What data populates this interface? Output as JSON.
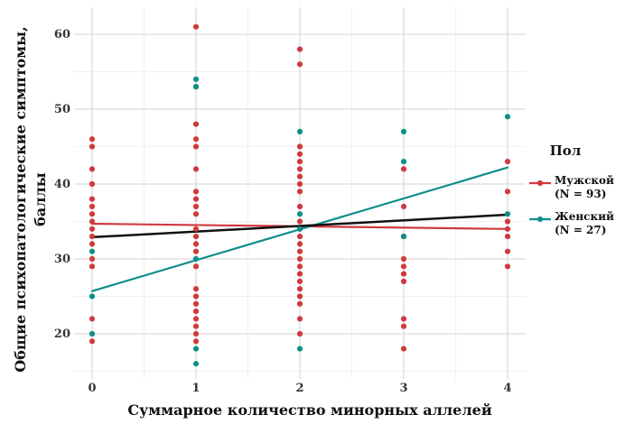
{
  "chart_data": {
    "type": "scatter",
    "xlabel": "Суммарное количество минорных аллелей",
    "ylabel_line1": "Общие психопатологические симптомы,",
    "ylabel_line2": "баллы",
    "x_ticks": [
      "0",
      "1",
      "2",
      "3",
      "4"
    ],
    "y_ticks": [
      "20",
      "30",
      "40",
      "50",
      "60"
    ],
    "xlim": [
      -0.1,
      4.1
    ],
    "ylim": [
      15,
      62
    ],
    "grid": true,
    "legend": {
      "title": "Пол",
      "position": "right",
      "entries": [
        {
          "line1": "Мужской",
          "line2": "(N = 93)",
          "color": "#d0393d"
        },
        {
          "line1": "Женский",
          "line2": "(N = 27)",
          "color": "#0e8f8c"
        }
      ]
    },
    "series": [
      {
        "name": "Мужской",
        "color": "#d0393d",
        "points": [
          [
            0,
            19
          ],
          [
            0,
            22
          ],
          [
            0,
            29
          ],
          [
            0,
            30
          ],
          [
            0,
            32
          ],
          [
            0,
            33
          ],
          [
            0,
            34
          ],
          [
            0,
            35
          ],
          [
            0,
            36
          ],
          [
            0,
            37
          ],
          [
            0,
            38
          ],
          [
            0,
            40
          ],
          [
            0,
            42
          ],
          [
            0,
            45
          ],
          [
            0,
            46
          ],
          [
            1,
            19
          ],
          [
            1,
            20
          ],
          [
            1,
            21
          ],
          [
            1,
            22
          ],
          [
            1,
            23
          ],
          [
            1,
            24
          ],
          [
            1,
            25
          ],
          [
            1,
            26
          ],
          [
            1,
            29
          ],
          [
            1,
            31
          ],
          [
            1,
            32
          ],
          [
            1,
            33
          ],
          [
            1,
            34
          ],
          [
            1,
            36
          ],
          [
            1,
            37
          ],
          [
            1,
            38
          ],
          [
            1,
            39
          ],
          [
            1,
            42
          ],
          [
            1,
            45
          ],
          [
            1,
            46
          ],
          [
            1,
            48
          ],
          [
            1,
            53
          ],
          [
            1,
            61
          ],
          [
            2,
            20
          ],
          [
            2,
            22
          ],
          [
            2,
            24
          ],
          [
            2,
            25
          ],
          [
            2,
            26
          ],
          [
            2,
            27
          ],
          [
            2,
            28
          ],
          [
            2,
            29
          ],
          [
            2,
            30
          ],
          [
            2,
            31
          ],
          [
            2,
            32
          ],
          [
            2,
            33
          ],
          [
            2,
            34
          ],
          [
            2,
            35
          ],
          [
            2,
            37
          ],
          [
            2,
            39
          ],
          [
            2,
            40
          ],
          [
            2,
            41
          ],
          [
            2,
            42
          ],
          [
            2,
            43
          ],
          [
            2,
            44
          ],
          [
            2,
            45
          ],
          [
            2,
            56
          ],
          [
            2,
            58
          ],
          [
            3,
            18
          ],
          [
            3,
            21
          ],
          [
            3,
            22
          ],
          [
            3,
            27
          ],
          [
            3,
            28
          ],
          [
            3,
            29
          ],
          [
            3,
            30
          ],
          [
            3,
            33
          ],
          [
            3,
            37
          ],
          [
            3,
            42
          ],
          [
            4,
            29
          ],
          [
            4,
            31
          ],
          [
            4,
            33
          ],
          [
            4,
            34
          ],
          [
            4,
            35
          ],
          [
            4,
            39
          ],
          [
            4,
            43
          ]
        ],
        "trend": {
          "x": [
            0,
            4
          ],
          "y": [
            34.7,
            34.0
          ]
        }
      },
      {
        "name": "Женский",
        "color": "#0e8f8c",
        "points": [
          [
            0,
            20
          ],
          [
            0,
            25
          ],
          [
            0,
            31
          ],
          [
            1,
            16
          ],
          [
            1,
            18
          ],
          [
            1,
            30
          ],
          [
            1,
            53
          ],
          [
            1,
            54
          ],
          [
            2,
            18
          ],
          [
            2,
            34
          ],
          [
            2,
            36
          ],
          [
            2,
            47
          ],
          [
            3,
            33
          ],
          [
            3,
            43
          ],
          [
            3,
            47
          ],
          [
            4,
            36
          ],
          [
            4,
            49
          ]
        ],
        "trend": {
          "x": [
            0,
            4
          ],
          "y": [
            25.7,
            42.2
          ]
        }
      },
      {
        "color": "#111111",
        "points": [],
        "trend": {
          "x": [
            0,
            4
          ],
          "y": [
            32.9,
            35.9
          ]
        }
      }
    ]
  }
}
